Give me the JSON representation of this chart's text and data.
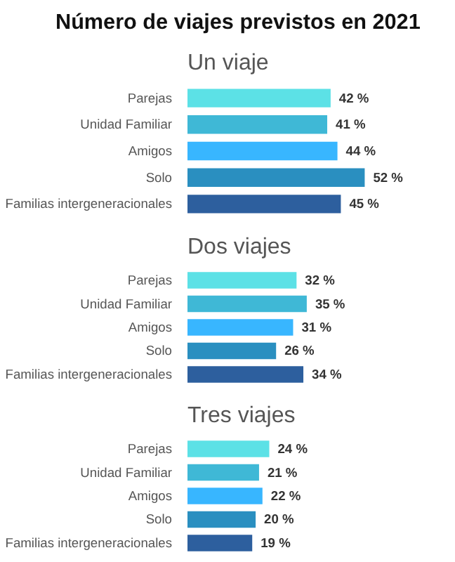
{
  "chart_data": [
    {
      "type": "bar",
      "title": "Número de viajes previstos en 2021",
      "subtitle": "Un viaje",
      "orientation": "horizontal",
      "tick_labels": "y",
      "categories": [
        "Parejas",
        "Unidad Familiar",
        "Amigos",
        "Solo",
        "Familias intergeneracionales"
      ],
      "series": [
        {
          "colors": [
            "#5ce1e6",
            "#3fb8d6",
            "#38b6ff",
            "#2a8fc0",
            "#2d5f9e"
          ],
          "values": [
            42,
            41,
            44,
            52,
            45
          ],
          "value_labels": [
            "42 %",
            "41 %",
            "44 %",
            "52 %",
            "45 %"
          ]
        }
      ]
    },
    {
      "type": "bar",
      "subtitle": "Dos viajes",
      "orientation": "horizontal",
      "tick_labels": "y",
      "categories": [
        "Parejas",
        "Unidad Familiar",
        "Amigos",
        "Solo",
        "Familias intergeneracionales"
      ],
      "series": [
        {
          "colors": [
            "#5ce1e6",
            "#3fb8d6",
            "#38b6ff",
            "#2a8fc0",
            "#2d5f9e"
          ],
          "values": [
            32,
            35,
            31,
            26,
            34
          ],
          "value_labels": [
            "32 %",
            "35 %",
            "31 %",
            "26 %",
            "34 %"
          ]
        }
      ]
    },
    {
      "type": "bar",
      "subtitle": "Tres viajes",
      "orientation": "horizontal",
      "tick_labels": "y",
      "categories": [
        "Parejas",
        "Unidad Familiar",
        "Amigos",
        "Solo",
        "Familias intergeneracionales"
      ],
      "series": [
        {
          "colors": [
            "#5ce1e6",
            "#3fb8d6",
            "#38b6ff",
            "#2a8fc0",
            "#2d5f9e"
          ],
          "values": [
            24,
            21,
            22,
            20,
            19
          ],
          "value_labels": [
            "24 %",
            "21 %",
            "22 %",
            "20 %",
            "19 %"
          ]
        }
      ]
    }
  ]
}
